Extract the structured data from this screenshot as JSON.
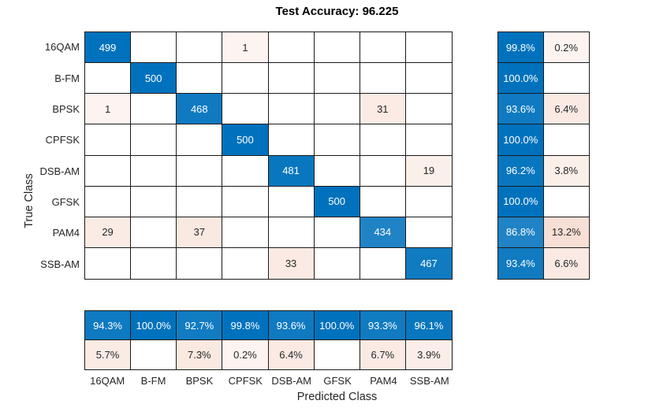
{
  "chart_data": {
    "type": "heatmap",
    "subtype": "confusion-matrix",
    "title": "Test Accuracy: 96.225",
    "xlabel": "Predicted Class",
    "ylabel": "True Class",
    "classes": [
      "16QAM",
      "B-FM",
      "BPSK",
      "CPFSK",
      "DSB-AM",
      "GFSK",
      "PAM4",
      "SSB-AM"
    ],
    "max_count": 500,
    "matrix": [
      [
        499,
        0,
        0,
        1,
        0,
        0,
        0,
        0
      ],
      [
        0,
        500,
        0,
        0,
        0,
        0,
        0,
        0
      ],
      [
        1,
        0,
        468,
        0,
        0,
        0,
        31,
        0
      ],
      [
        0,
        0,
        0,
        500,
        0,
        0,
        0,
        0
      ],
      [
        0,
        0,
        0,
        0,
        481,
        0,
        0,
        19
      ],
      [
        0,
        0,
        0,
        0,
        0,
        500,
        0,
        0
      ],
      [
        29,
        0,
        37,
        0,
        0,
        0,
        434,
        0
      ],
      [
        0,
        0,
        0,
        0,
        33,
        0,
        0,
        467
      ]
    ],
    "row_summary": {
      "true_positive_rate": [
        "99.8%",
        "100.0%",
        "93.6%",
        "100.0%",
        "96.2%",
        "100.0%",
        "86.8%",
        "93.4%"
      ],
      "false_negative_rate": [
        "0.2%",
        "",
        "6.4%",
        "",
        "3.8%",
        "",
        "13.2%",
        "6.6%"
      ]
    },
    "col_summary": {
      "positive_predictive_value": [
        "94.3%",
        "100.0%",
        "92.7%",
        "99.8%",
        "93.6%",
        "100.0%",
        "93.3%",
        "96.1%"
      ],
      "false_discovery_rate": [
        "5.7%",
        "",
        "7.3%",
        "0.2%",
        "6.4%",
        "",
        "6.7%",
        "3.9%"
      ]
    },
    "colors": {
      "diagonal": "#0072BD",
      "off_diagonal": "#D95319",
      "grid_line": "#1a1a1a",
      "dark_text": "#262626",
      "light_text": "#FFFFFF",
      "background": "#FFFFFF"
    },
    "legend_position": "none",
    "grid": true
  }
}
